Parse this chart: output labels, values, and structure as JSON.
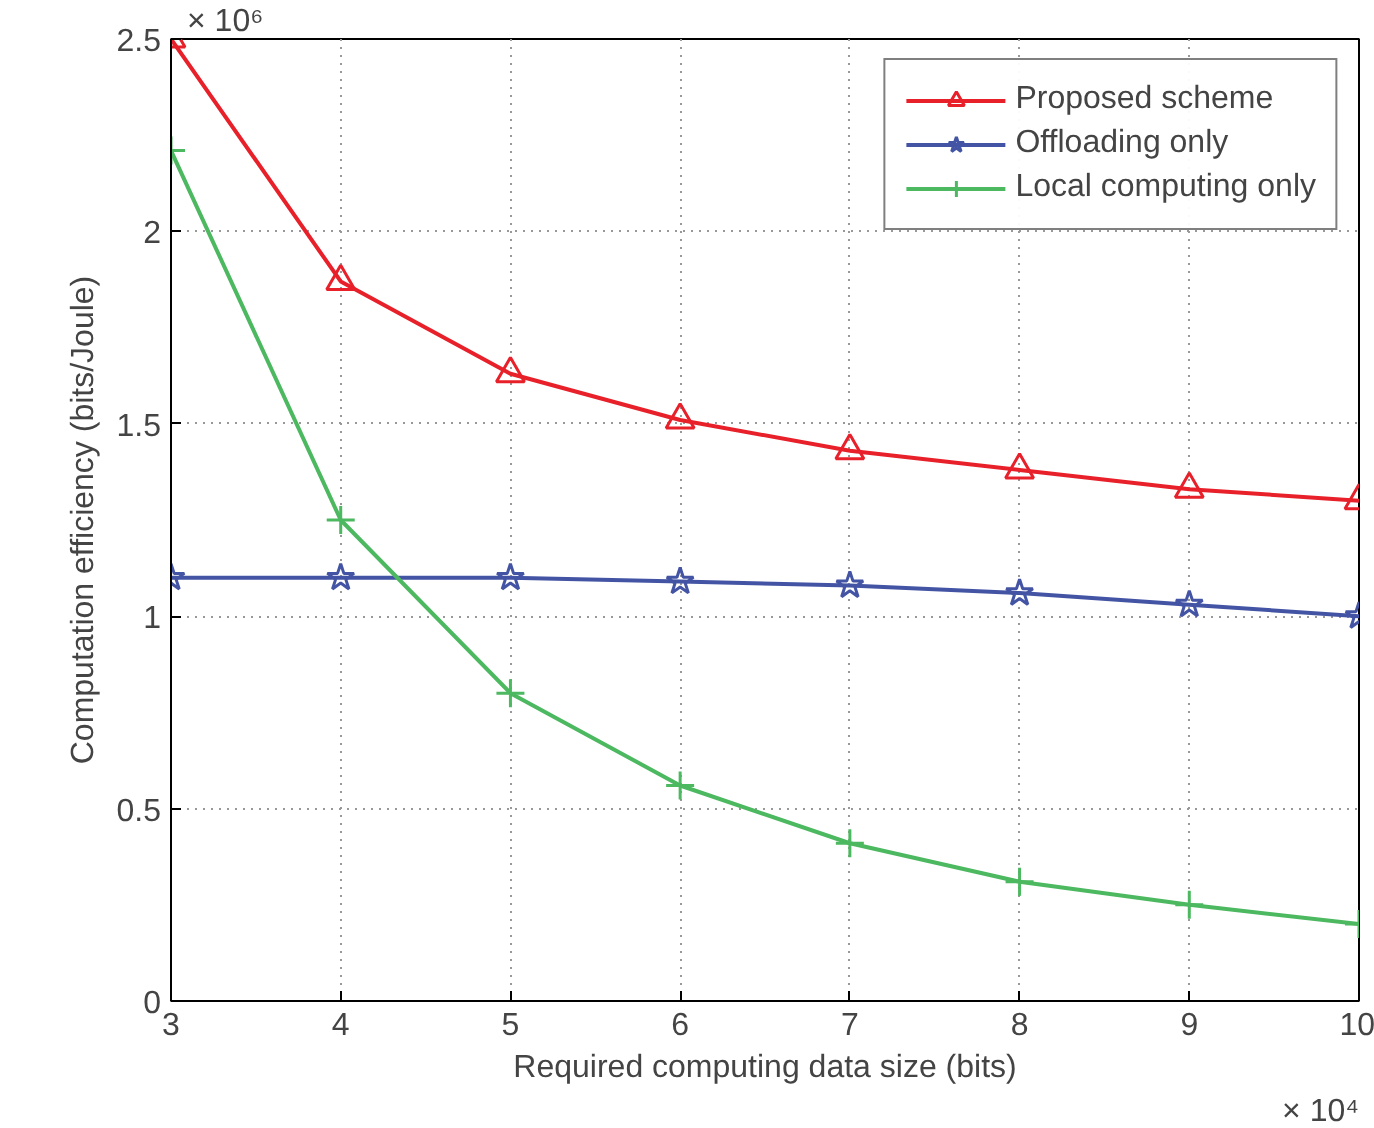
{
  "chart_data": {
    "type": "line",
    "xlabel": "Required computing data size (bits)",
    "ylabel": "Computation efficiency (bits/Joule)",
    "x": [
      3,
      4,
      5,
      6,
      7,
      8,
      9,
      10
    ],
    "series": [
      {
        "name": "Proposed scheme",
        "color": "#e8202a",
        "marker": "triangle",
        "values": [
          2.5,
          1.87,
          1.63,
          1.51,
          1.43,
          1.38,
          1.33,
          1.3
        ]
      },
      {
        "name": "Offloading only",
        "color": "#4454a4",
        "marker": "star",
        "values": [
          1.1,
          1.1,
          1.1,
          1.09,
          1.08,
          1.06,
          1.03,
          1.0
        ]
      },
      {
        "name": "Local computing only",
        "color": "#4cb860",
        "marker": "cross",
        "values": [
          2.21,
          1.25,
          0.8,
          0.56,
          0.41,
          0.31,
          0.25,
          0.2
        ]
      }
    ],
    "xlim": [
      3,
      10
    ],
    "xticks": [
      3,
      4,
      5,
      6,
      7,
      8,
      9,
      10
    ],
    "ylim": [
      0,
      2.5
    ],
    "yticks": [
      0,
      0.5,
      1,
      1.5,
      2,
      2.5
    ],
    "grid": true,
    "legend": "top right",
    "line_style": "solid",
    "annotations": [
      "× 10⁶",
      "× 10⁴"
    ]
  }
}
